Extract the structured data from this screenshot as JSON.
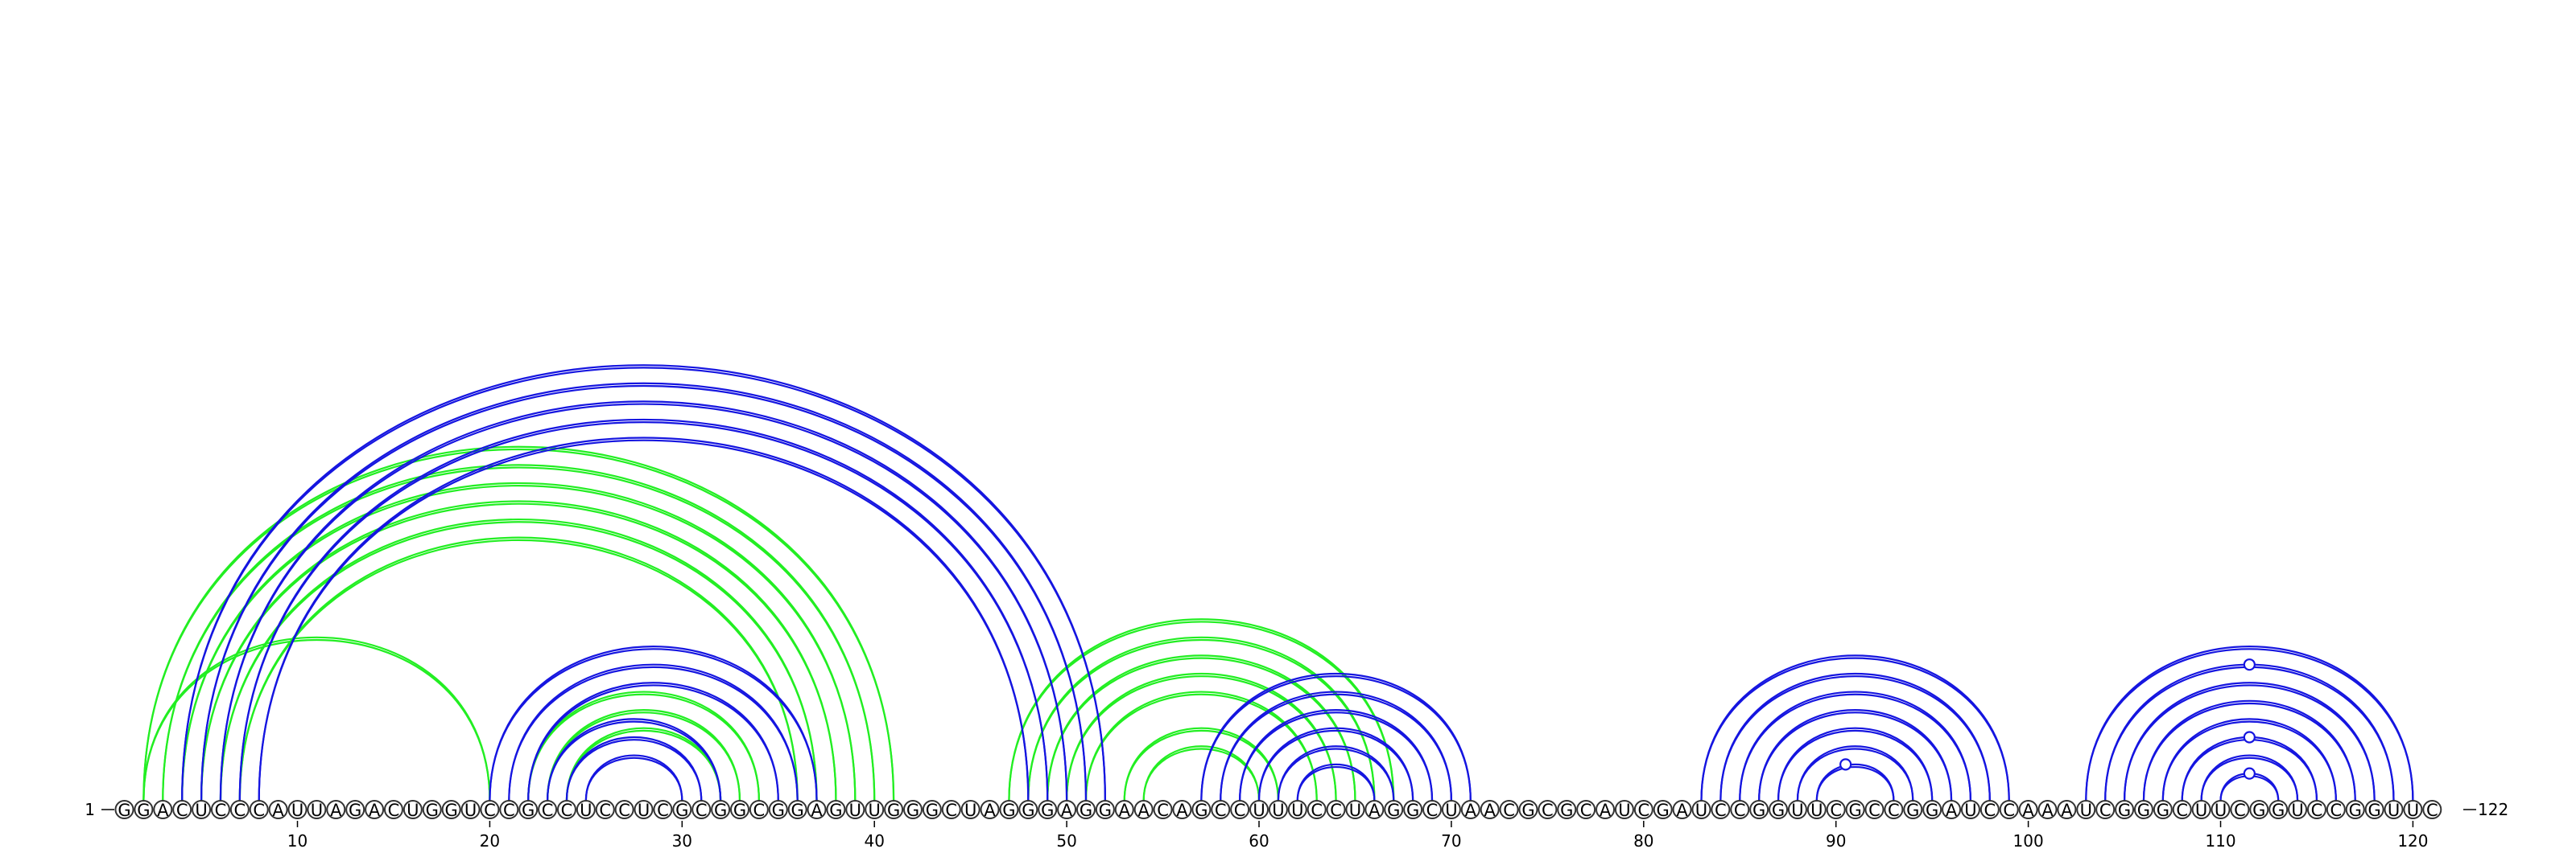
{
  "sequence": "GGACUCCCAUUAGACUGGUCCGCCUCCUCGCGGCGGAGUUGGGCUAGGGAGGAACAGCCUUUCCUAGGCUAACGCGCAUCGAUCCGGUUCGCCGGAUCCAAAUCGGGCUUCGGUCCGGUUC",
  "start_label": "1",
  "end_label": "122",
  "ticks": [
    10,
    20,
    30,
    40,
    50,
    60,
    70,
    80,
    90,
    100,
    110,
    120
  ],
  "colors": {
    "blue": "#1515e0",
    "green": "#22ee22"
  },
  "blue_arcs": [
    [
      4,
      52
    ],
    [
      5,
      51
    ],
    [
      6,
      50
    ],
    [
      7,
      49
    ],
    [
      8,
      48
    ],
    [
      20,
      37
    ],
    [
      21,
      36
    ],
    [
      22,
      35
    ],
    [
      23,
      32
    ],
    [
      24,
      31
    ],
    [
      25,
      30
    ],
    [
      57,
      71
    ],
    [
      58,
      70
    ],
    [
      59,
      69
    ],
    [
      60,
      68
    ],
    [
      61,
      67
    ],
    [
      62,
      66
    ],
    [
      83,
      99
    ],
    [
      84,
      98
    ],
    [
      85,
      97
    ],
    [
      86,
      96
    ],
    [
      87,
      95
    ],
    [
      88,
      94
    ],
    [
      89,
      93
    ],
    [
      103,
      120
    ],
    [
      104,
      119
    ],
    [
      105,
      118
    ],
    [
      106,
      117
    ],
    [
      107,
      116
    ],
    [
      108,
      115
    ],
    [
      109,
      114
    ],
    [
      110,
      113
    ]
  ],
  "green_arcs": [
    [
      2,
      20
    ],
    [
      2,
      41
    ],
    [
      3,
      40
    ],
    [
      4,
      39
    ],
    [
      5,
      38
    ],
    [
      6,
      37
    ],
    [
      7,
      36
    ],
    [
      22,
      34
    ],
    [
      23,
      33
    ],
    [
      24,
      32
    ],
    [
      47,
      67
    ],
    [
      48,
      66
    ],
    [
      49,
      65
    ],
    [
      50,
      64
    ],
    [
      51,
      63
    ],
    [
      53,
      61
    ],
    [
      54,
      60
    ]
  ],
  "loop_marks": [
    {
      "pos": 90.5,
      "arc": [
        89,
        93
      ]
    },
    {
      "pos": 111.5,
      "arc": [
        110,
        113
      ]
    },
    {
      "pos": 111.5,
      "arc": [
        108,
        115
      ]
    },
    {
      "pos": 111.5,
      "arc": [
        104,
        119
      ]
    }
  ]
}
